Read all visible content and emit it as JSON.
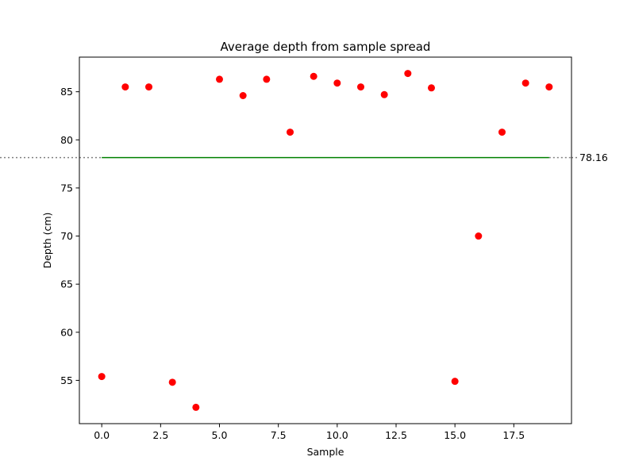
{
  "chart_data": {
    "type": "scatter",
    "title": "Average depth from sample spread",
    "xlabel": "Sample",
    "ylabel": "Depth (cm)",
    "xlim": [
      -0.95,
      19.95
    ],
    "ylim": [
      50.5,
      88.6
    ],
    "x_ticks": [
      {
        "value": 0,
        "label": "0.0"
      },
      {
        "value": 2.5,
        "label": "2.5"
      },
      {
        "value": 5,
        "label": "5.0"
      },
      {
        "value": 7.5,
        "label": "7.5"
      },
      {
        "value": 10,
        "label": "10.0"
      },
      {
        "value": 12.5,
        "label": "12.5"
      },
      {
        "value": 15,
        "label": "15.0"
      },
      {
        "value": 17.5,
        "label": "17.5"
      }
    ],
    "y_ticks": [
      {
        "value": 55,
        "label": "55"
      },
      {
        "value": 60,
        "label": "60"
      },
      {
        "value": 65,
        "label": "65"
      },
      {
        "value": 70,
        "label": "70"
      },
      {
        "value": 75,
        "label": "75"
      },
      {
        "value": 80,
        "label": "80"
      },
      {
        "value": 85,
        "label": "85"
      }
    ],
    "x": [
      0,
      1,
      2,
      3,
      4,
      5,
      6,
      7,
      8,
      9,
      10,
      11,
      12,
      13,
      14,
      15,
      16,
      17,
      18,
      19
    ],
    "y": [
      55.4,
      85.5,
      85.5,
      54.8,
      52.2,
      86.3,
      84.6,
      86.3,
      80.8,
      86.6,
      85.9,
      85.5,
      84.7,
      86.9,
      85.4,
      54.9,
      70.0,
      80.8,
      85.9,
      85.5
    ],
    "marker_color": "#ff0000",
    "average": {
      "value": 78.16,
      "label": "78.16",
      "x_range": [
        0,
        19
      ],
      "line_color": "#008000",
      "guide_color": "#808080"
    },
    "grid": false
  }
}
